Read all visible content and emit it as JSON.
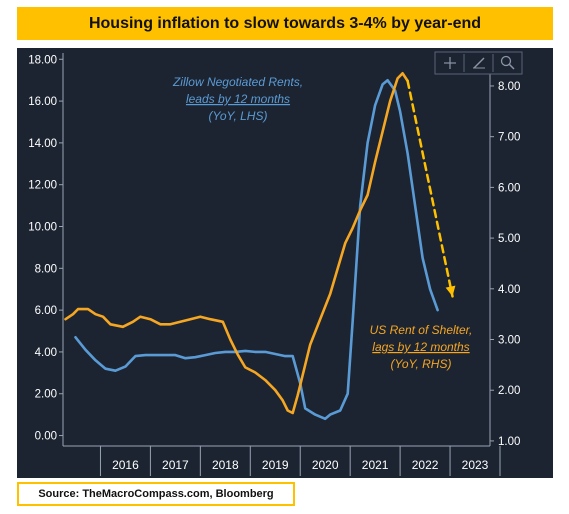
{
  "title": "Housing inflation to slow towards 3-4% by year-end",
  "source": "Source: TheMacroCompass.com, Bloomberg",
  "toolbar": {
    "icons": [
      "crosshair-icon",
      "pencil-icon",
      "zoom-icon"
    ]
  },
  "colors": {
    "background": "#1c2431",
    "title_banner": "#ffc000",
    "zillow": "#5b9bd5",
    "shelter": "#f5a623",
    "projection": "#ffc000",
    "axis_text": "#ffffff"
  },
  "chart_data": {
    "type": "line",
    "title": "Housing inflation to slow towards 3-4% by year-end",
    "x_ticks": [
      "2016",
      "2017",
      "2018",
      "2019",
      "2020",
      "2021",
      "2022",
      "2023"
    ],
    "x_range": [
      2015.25,
      2023.8
    ],
    "y_left": {
      "ticks": [
        "18.00",
        "16.00",
        "14.00",
        "12.00",
        "10.00",
        "8.00",
        "6.00",
        "4.00",
        "2.00",
        "0.00"
      ],
      "range": [
        -0.5,
        18.3
      ]
    },
    "y_right": {
      "ticks": [
        "8.00",
        "7.00",
        "6.00",
        "5.00",
        "4.00",
        "3.00",
        "2.00",
        "1.00"
      ],
      "range": [
        0.9,
        8.65
      ]
    },
    "grid": false,
    "series": [
      {
        "name": "Zillow Negotiated Rents",
        "axis": "left",
        "annotation": [
          "Zillow Negotiated Rents,",
          "leads by 12 months",
          "(YoY, LHS)"
        ],
        "color": "#5b9bd5",
        "points": [
          [
            2015.5,
            4.7
          ],
          [
            2015.7,
            4.1
          ],
          [
            2015.9,
            3.6
          ],
          [
            2016.1,
            3.2
          ],
          [
            2016.3,
            3.1
          ],
          [
            2016.5,
            3.3
          ],
          [
            2016.7,
            3.8
          ],
          [
            2016.9,
            3.85
          ],
          [
            2017.1,
            3.85
          ],
          [
            2017.3,
            3.85
          ],
          [
            2017.5,
            3.85
          ],
          [
            2017.7,
            3.7
          ],
          [
            2017.9,
            3.75
          ],
          [
            2018.1,
            3.85
          ],
          [
            2018.3,
            3.95
          ],
          [
            2018.5,
            4.0
          ],
          [
            2018.7,
            4.0
          ],
          [
            2018.9,
            4.05
          ],
          [
            2019.1,
            4.0
          ],
          [
            2019.3,
            4.0
          ],
          [
            2019.5,
            3.9
          ],
          [
            2019.7,
            3.8
          ],
          [
            2019.85,
            3.8
          ],
          [
            2020.0,
            2.5
          ],
          [
            2020.1,
            1.3
          ],
          [
            2020.3,
            1.0
          ],
          [
            2020.5,
            0.8
          ],
          [
            2020.6,
            1.0
          ],
          [
            2020.8,
            1.2
          ],
          [
            2020.95,
            2.0
          ],
          [
            2021.05,
            5.5
          ],
          [
            2021.2,
            11.0
          ],
          [
            2021.35,
            14.0
          ],
          [
            2021.5,
            15.8
          ],
          [
            2021.65,
            16.8
          ],
          [
            2021.75,
            17.0
          ],
          [
            2021.9,
            16.5
          ],
          [
            2022.0,
            15.5
          ],
          [
            2022.15,
            13.5
          ],
          [
            2022.3,
            11.0
          ],
          [
            2022.45,
            8.5
          ],
          [
            2022.6,
            7.0
          ],
          [
            2022.75,
            6.0
          ]
        ]
      },
      {
        "name": "US Rent of Shelter",
        "axis": "right",
        "annotation": [
          "US Rent of Shelter,",
          "lags by 12 months",
          "(YoY, RHS)"
        ],
        "color": "#f5a623",
        "points": [
          [
            2015.3,
            3.4
          ],
          [
            2015.45,
            3.5
          ],
          [
            2015.55,
            3.6
          ],
          [
            2015.75,
            3.6
          ],
          [
            2015.9,
            3.5
          ],
          [
            2016.05,
            3.45
          ],
          [
            2016.2,
            3.3
          ],
          [
            2016.45,
            3.25
          ],
          [
            2016.65,
            3.35
          ],
          [
            2016.8,
            3.45
          ],
          [
            2017.0,
            3.4
          ],
          [
            2017.2,
            3.3
          ],
          [
            2017.4,
            3.3
          ],
          [
            2017.6,
            3.35
          ],
          [
            2017.8,
            3.4
          ],
          [
            2018.0,
            3.45
          ],
          [
            2018.2,
            3.4
          ],
          [
            2018.45,
            3.35
          ],
          [
            2018.6,
            3.0
          ],
          [
            2018.75,
            2.7
          ],
          [
            2018.9,
            2.45
          ],
          [
            2019.1,
            2.35
          ],
          [
            2019.3,
            2.2
          ],
          [
            2019.5,
            2.0
          ],
          [
            2019.65,
            1.8
          ],
          [
            2019.75,
            1.6
          ],
          [
            2019.85,
            1.55
          ],
          [
            2019.95,
            1.9
          ],
          [
            2020.05,
            2.3
          ],
          [
            2020.2,
            2.9
          ],
          [
            2020.4,
            3.4
          ],
          [
            2020.6,
            3.9
          ],
          [
            2020.75,
            4.4
          ],
          [
            2020.9,
            4.9
          ],
          [
            2021.05,
            5.2
          ],
          [
            2021.2,
            5.55
          ],
          [
            2021.35,
            5.85
          ],
          [
            2021.5,
            6.5
          ],
          [
            2021.65,
            7.1
          ],
          [
            2021.8,
            7.7
          ],
          [
            2021.95,
            8.15
          ],
          [
            2022.05,
            8.25
          ],
          [
            2022.15,
            8.1
          ]
        ]
      },
      {
        "name": "projection",
        "axis": "right",
        "dashed": true,
        "color": "#ffc000",
        "points": [
          [
            2022.15,
            8.1
          ],
          [
            2023.05,
            3.85
          ]
        ]
      }
    ]
  }
}
